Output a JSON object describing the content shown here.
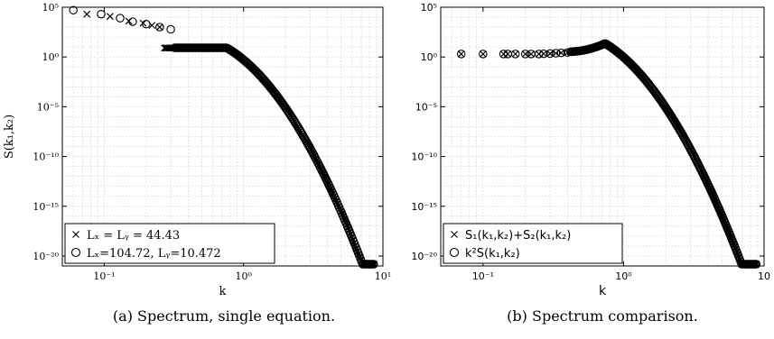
{
  "chart_data": [
    {
      "type": "scatter",
      "subcaption_label": "(a)",
      "caption": "Spectrum, single equation.",
      "xlabel": "k",
      "ylabel": "S(k₁,k₂)",
      "xscale": "log",
      "yscale": "log",
      "xlim": [
        0.05,
        10
      ],
      "ylim": [
        1e-21,
        100000.0
      ],
      "grid": true,
      "legend_position": "bottom-left",
      "x_ticks": [
        {
          "value": 0.1,
          "label": "10⁻¹"
        },
        {
          "value": 1,
          "label": "10⁰"
        },
        {
          "value": 10,
          "label": "10¹"
        }
      ],
      "y_ticks": [
        {
          "value": 100000.0,
          "label": "10⁵"
        },
        {
          "value": 1,
          "label": "10⁰"
        },
        {
          "value": 1e-05,
          "label": "10⁻⁵"
        },
        {
          "value": 1e-10,
          "label": "10⁻¹⁰"
        },
        {
          "value": 1e-15,
          "label": "10⁻¹⁵"
        },
        {
          "value": 1e-20,
          "label": "10⁻²⁰"
        }
      ],
      "series": [
        {
          "name": "Lₓ = Lᵧ = 44.43",
          "marker": "x",
          "sparse": [
            [
              0.075,
              20000
            ],
            [
              0.11,
              12000
            ],
            [
              0.15,
              4000
            ],
            [
              0.19,
              2500
            ],
            [
              0.22,
              1500
            ],
            [
              0.25,
              1000
            ]
          ],
          "curve": {
            "x_start": 0.27,
            "x_end": 8.6,
            "count": 180
          }
        },
        {
          "name": "Lₓ=104.72, Lᵧ=10.472",
          "marker": "o",
          "sparse": [
            [
              0.06,
              50000
            ],
            [
              0.095,
              20000
            ],
            [
              0.13,
              8000
            ],
            [
              0.16,
              3500
            ],
            [
              0.2,
              2000
            ],
            [
              0.25,
              1000
            ],
            [
              0.3,
              600
            ]
          ],
          "curve": {
            "x_start": 0.32,
            "x_end": 8.6,
            "count": 180
          }
        }
      ]
    },
    {
      "type": "scatter",
      "subcaption_label": "(b)",
      "caption": "Spectrum comparison.",
      "xlabel": "k",
      "ylabel": "",
      "xscale": "log",
      "yscale": "log",
      "xlim": [
        0.05,
        10
      ],
      "ylim": [
        1e-21,
        100000.0
      ],
      "grid": true,
      "legend_position": "bottom-left",
      "x_ticks": [
        {
          "value": 0.1,
          "label": "10⁻¹"
        },
        {
          "value": 1,
          "label": "10⁰"
        },
        {
          "value": 10,
          "label": "10"
        }
      ],
      "y_ticks": [
        {
          "value": 100000.0,
          "label": "10⁵"
        },
        {
          "value": 1,
          "label": "10⁰"
        },
        {
          "value": 1e-05,
          "label": "10⁻⁵"
        },
        {
          "value": 1e-10,
          "label": "10⁻¹⁰"
        },
        {
          "value": 1e-15,
          "label": "10⁻¹⁵"
        },
        {
          "value": 1e-20,
          "label": "10⁻²⁰"
        }
      ],
      "series": [
        {
          "name": "S₁(k₁,k₂)+S₂(k₁,k₂)",
          "marker": "x",
          "sparse": [
            [
              0.07,
              2
            ],
            [
              0.1,
              2
            ],
            [
              0.14,
              2
            ],
            [
              0.15,
              2
            ],
            [
              0.17,
              2
            ],
            [
              0.2,
              2
            ],
            [
              0.22,
              2
            ],
            [
              0.25,
              2
            ],
            [
              0.27,
              2.1
            ],
            [
              0.3,
              2.2
            ],
            [
              0.33,
              2.4
            ],
            [
              0.36,
              2.6
            ],
            [
              0.4,
              2.8
            ]
          ],
          "curve": {
            "x_start": 0.42,
            "x_end": 8.8,
            "count": 180
          }
        },
        {
          "name": "k²S(k₁,k₂)",
          "marker": "o",
          "sparse": [
            [
              0.07,
              2
            ],
            [
              0.1,
              2
            ],
            [
              0.14,
              2
            ],
            [
              0.15,
              2
            ],
            [
              0.17,
              2
            ],
            [
              0.2,
              2
            ],
            [
              0.22,
              2
            ],
            [
              0.25,
              2
            ],
            [
              0.27,
              2.1
            ],
            [
              0.3,
              2.2
            ],
            [
              0.33,
              2.4
            ],
            [
              0.36,
              2.6
            ],
            [
              0.4,
              2.8
            ]
          ],
          "curve": {
            "x_start": 0.42,
            "x_end": 8.8,
            "count": 180
          }
        }
      ]
    }
  ]
}
